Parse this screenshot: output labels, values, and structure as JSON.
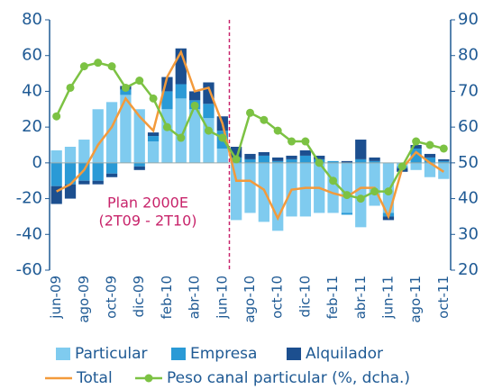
{
  "chart_data": {
    "type": "combo",
    "categories": [
      "jun-09",
      null,
      "ago-09",
      null,
      "oct-09",
      null,
      "dic-09",
      null,
      "feb-10",
      null,
      "abr-10",
      null,
      "jun-10",
      null,
      "ago-10",
      null,
      "oct-10",
      null,
      "dic-10",
      null,
      "feb-11",
      null,
      "abr-11",
      null,
      "jun-11",
      null,
      "ago-11",
      null,
      "oct-11"
    ],
    "series": [
      {
        "name": "Particular",
        "type": "bar",
        "color": "#7fcbef",
        "values": [
          7,
          9,
          13,
          30,
          34,
          38,
          30,
          12,
          30,
          36,
          30,
          25,
          8,
          -32,
          -28,
          -33,
          -38,
          -30,
          -30,
          -28,
          -28,
          -28,
          -36,
          -24,
          -28,
          -2,
          -4,
          -8,
          -9
        ]
      },
      {
        "name": "Empresa",
        "type": "bar",
        "color": "#2a9ad6",
        "values": [
          -13,
          -12,
          -10,
          -10,
          -6,
          3,
          -2,
          3,
          10,
          8,
          5,
          8,
          10,
          3,
          2,
          4,
          1,
          2,
          4,
          2,
          1,
          -1,
          2,
          1,
          -2,
          -1,
          8,
          3,
          1
        ]
      },
      {
        "name": "Alquilador",
        "type": "bar",
        "color": "#1c4f8f",
        "values": [
          -10,
          -8,
          -2,
          -2,
          -2,
          2,
          -2,
          2,
          8,
          20,
          5,
          12,
          8,
          6,
          3,
          2,
          2,
          2,
          3,
          2,
          0,
          1,
          11,
          2,
          -2,
          -2,
          2,
          2,
          1
        ]
      },
      {
        "name": "Total",
        "type": "line",
        "color": "#f39a3b",
        "values": [
          -16,
          -12,
          -4,
          10,
          20,
          36,
          26,
          18,
          48,
          62,
          40,
          42,
          22,
          -10,
          -10,
          -15,
          -31,
          -15,
          -14,
          -14,
          -17,
          -19,
          -14,
          -14,
          -30,
          -3,
          6,
          0,
          -5
        ]
      },
      {
        "name": "Peso canal particular (%, dcha.)",
        "type": "line",
        "marker": true,
        "axis": "y2",
        "color": "#7cc243",
        "values": [
          63,
          71,
          77,
          78,
          77,
          71,
          73,
          68,
          60,
          57,
          66,
          59,
          57,
          51,
          64,
          62,
          59,
          56,
          56,
          50,
          45,
          41,
          40,
          42,
          42,
          49,
          56,
          55,
          54
        ]
      }
    ],
    "ylim": [
      -60,
      80
    ],
    "yticks": [
      -60,
      -40,
      -20,
      0,
      20,
      40,
      60,
      80
    ],
    "y2lim": [
      20,
      90
    ],
    "y2ticks": [
      20,
      30,
      40,
      50,
      60,
      70,
      80,
      90
    ],
    "annotations": [
      "Plan 2000E",
      "(2T09 - 2T10)"
    ]
  }
}
